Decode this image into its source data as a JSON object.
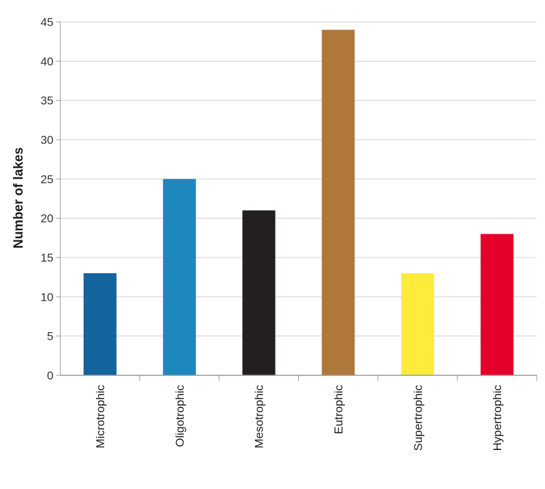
{
  "chart_data": {
    "type": "bar",
    "title": "",
    "xlabel": "",
    "ylabel": "Number of lakes",
    "ylim": [
      0,
      45
    ],
    "yticks": [
      0,
      5,
      10,
      15,
      20,
      25,
      30,
      35,
      40,
      45
    ],
    "grid": true,
    "categories": [
      "Microtrophic",
      "Oligotrophic",
      "Mesotrophic",
      "Eutrophic",
      "Supertrophic",
      "Hypertrophic"
    ],
    "values": [
      13,
      25,
      21,
      44,
      13,
      18
    ],
    "colors": [
      "#14649e",
      "#1e88bd",
      "#231f20",
      "#b0773a",
      "#ffeb3c",
      "#e4002b"
    ]
  }
}
